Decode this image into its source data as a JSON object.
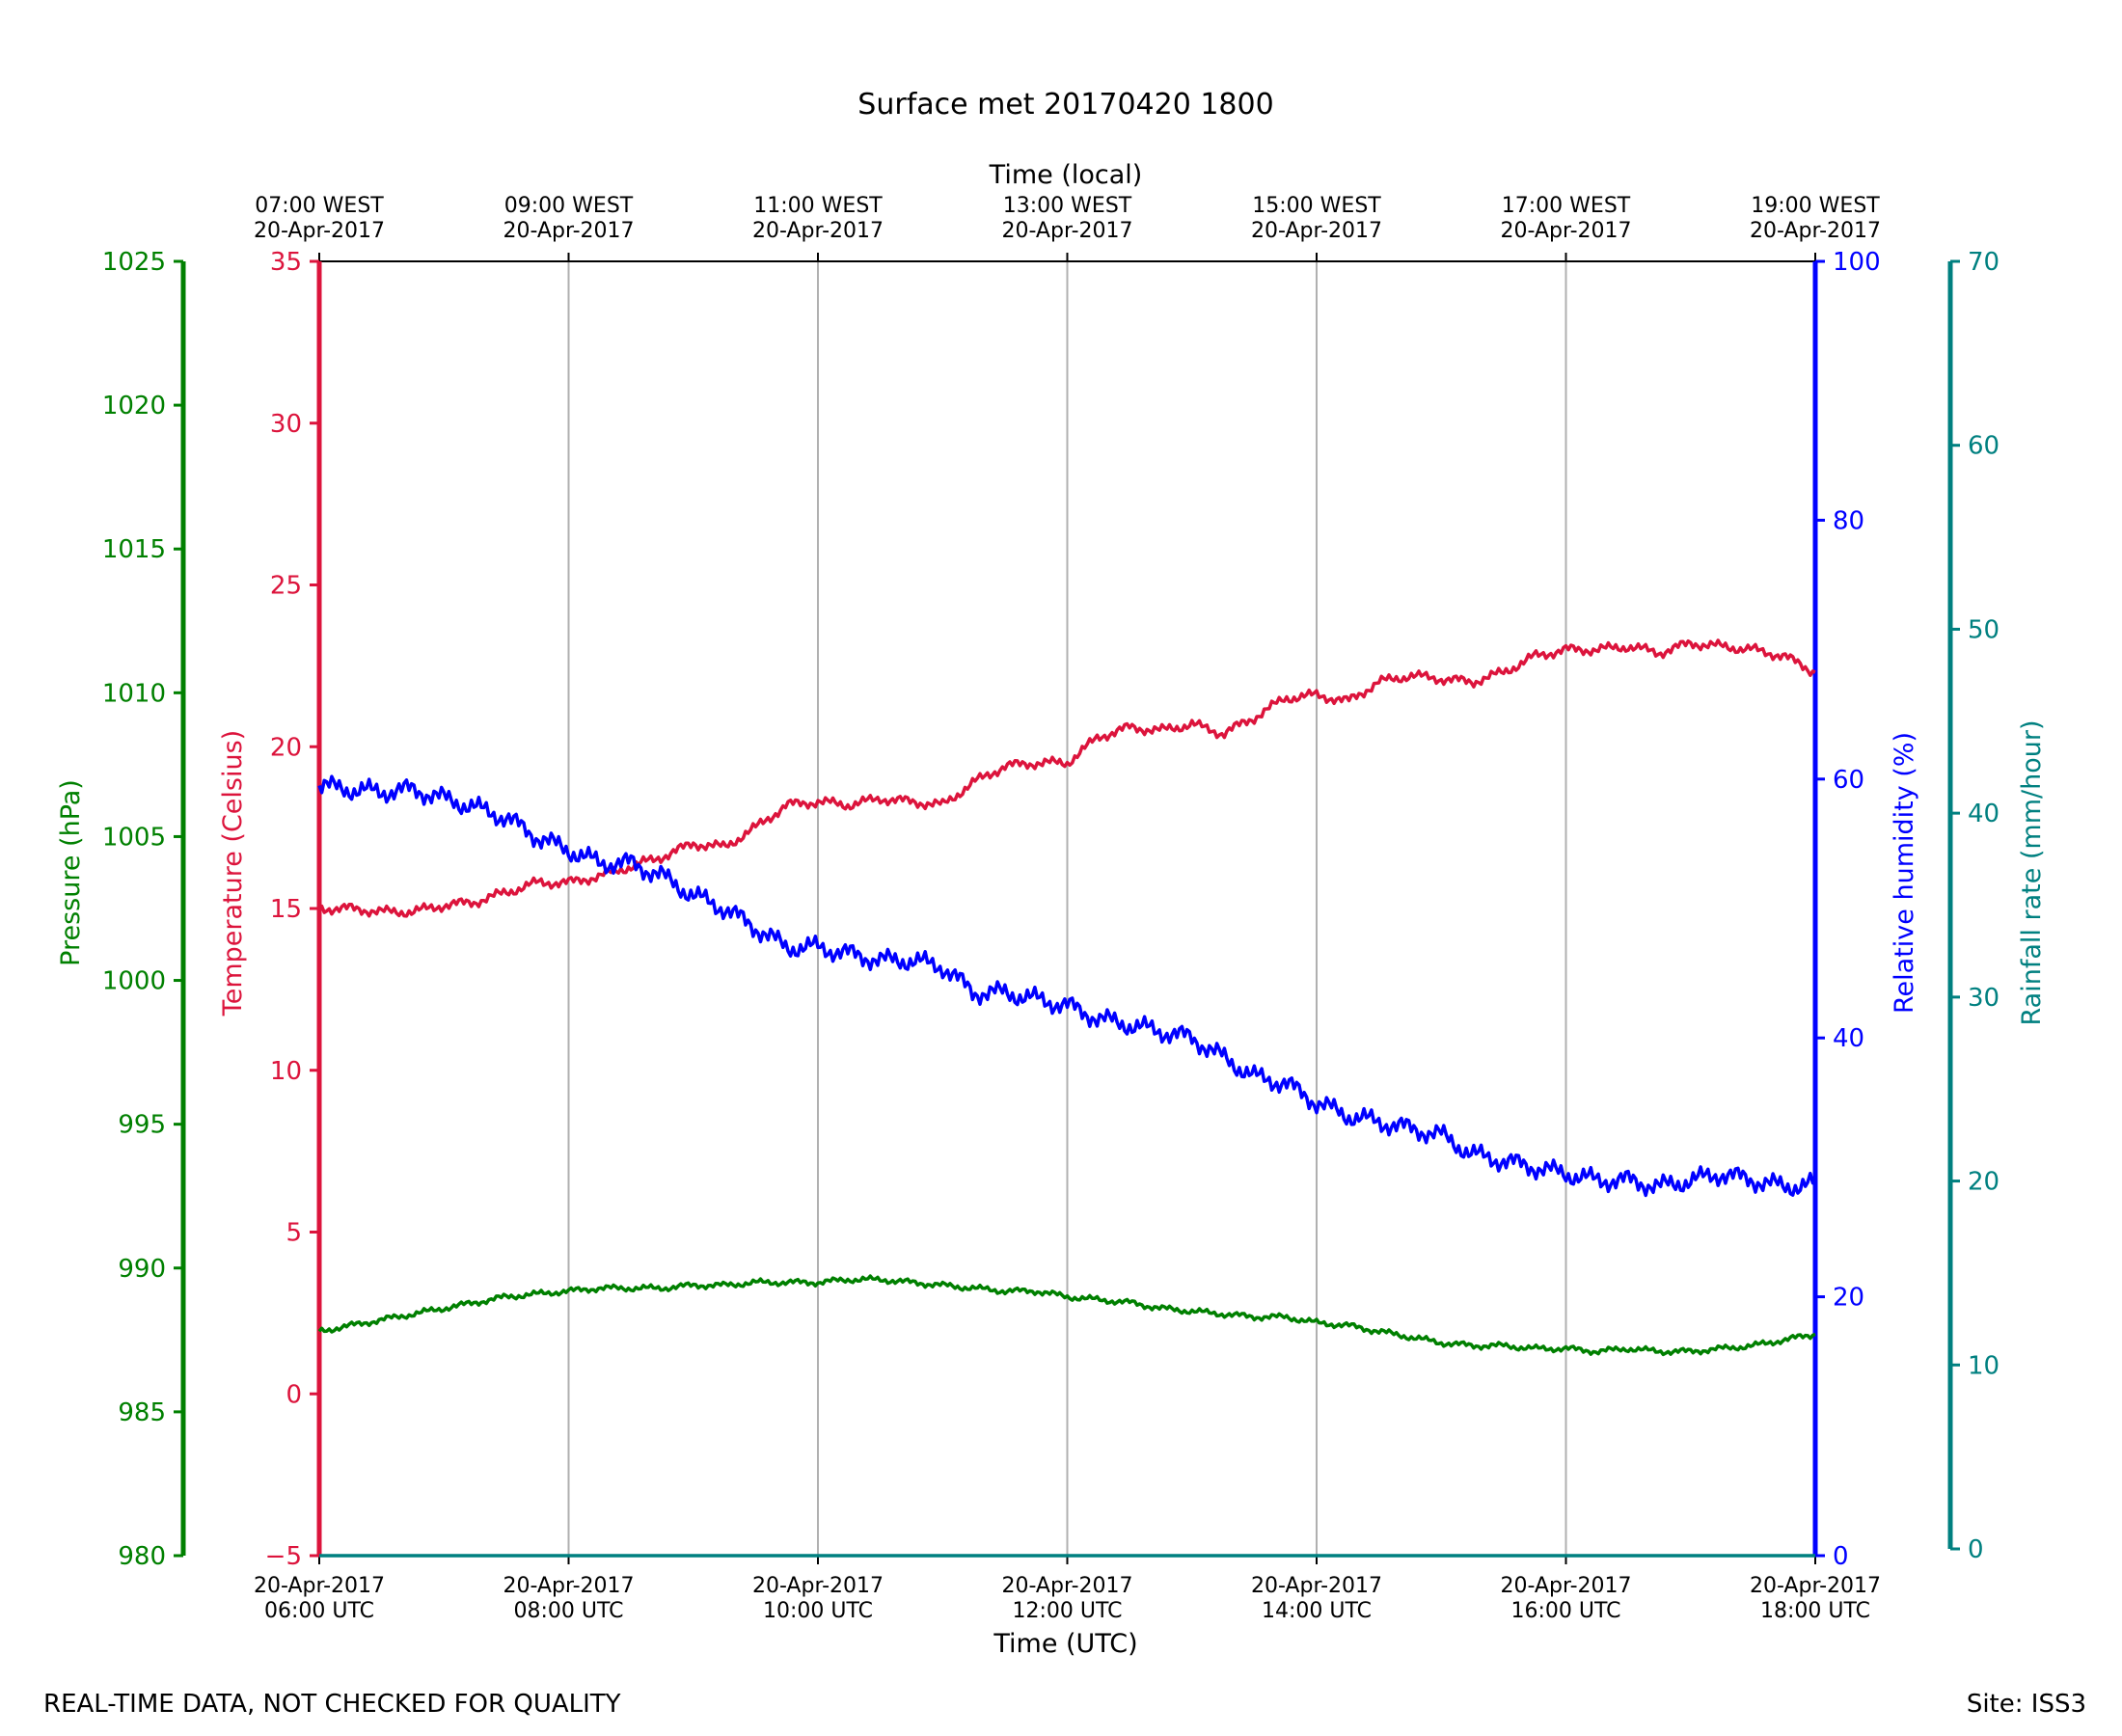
{
  "chart_data": {
    "type": "line",
    "title": "Surface met 20170420 1800",
    "footer_left": "REAL-TIME DATA, NOT CHECKED FOR QUALITY",
    "footer_right": "Site: ISS3",
    "x_bottom": {
      "label": "Time (UTC)",
      "range_hours": [
        6,
        18
      ],
      "ticks": [
        {
          "hour": 6,
          "line1": "20-Apr-2017",
          "line2": "06:00 UTC"
        },
        {
          "hour": 8,
          "line1": "20-Apr-2017",
          "line2": "08:00 UTC"
        },
        {
          "hour": 10,
          "line1": "20-Apr-2017",
          "line2": "10:00 UTC"
        },
        {
          "hour": 12,
          "line1": "20-Apr-2017",
          "line2": "12:00 UTC"
        },
        {
          "hour": 14,
          "line1": "20-Apr-2017",
          "line2": "14:00 UTC"
        },
        {
          "hour": 16,
          "line1": "20-Apr-2017",
          "line2": "16:00 UTC"
        },
        {
          "hour": 18,
          "line1": "20-Apr-2017",
          "line2": "18:00 UTC"
        }
      ]
    },
    "x_top": {
      "label": "Time (local)",
      "ticks": [
        {
          "hour": 6,
          "line1": "07:00 WEST",
          "line2": "20-Apr-2017"
        },
        {
          "hour": 8,
          "line1": "09:00 WEST",
          "line2": "20-Apr-2017"
        },
        {
          "hour": 10,
          "line1": "11:00 WEST",
          "line2": "20-Apr-2017"
        },
        {
          "hour": 12,
          "line1": "13:00 WEST",
          "line2": "20-Apr-2017"
        },
        {
          "hour": 14,
          "line1": "15:00 WEST",
          "line2": "20-Apr-2017"
        },
        {
          "hour": 16,
          "line1": "17:00 WEST",
          "line2": "20-Apr-2017"
        },
        {
          "hour": 18,
          "line1": "19:00 WEST",
          "line2": "20-Apr-2017"
        }
      ]
    },
    "axes": {
      "pressure": {
        "label": "Pressure (hPa)",
        "color": "#008000",
        "ylim": [
          980,
          1025
        ],
        "ticks": [
          980,
          985,
          990,
          995,
          1000,
          1005,
          1010,
          1015,
          1020,
          1025
        ]
      },
      "temperature": {
        "label": "Temperature (Celsius)",
        "color": "#dc143c",
        "ylim": [
          -5,
          35
        ],
        "ticks": [
          -5,
          0,
          5,
          10,
          15,
          20,
          25,
          30,
          35
        ]
      },
      "humidity": {
        "label": "Relative humidity (%)",
        "color": "#0000ff",
        "ylim": [
          0,
          100
        ],
        "ticks": [
          0,
          20,
          40,
          60,
          80,
          100
        ]
      },
      "rainfall": {
        "label": "Rainfall rate (mm/hour)",
        "color": "#008080",
        "ylim": [
          0,
          70
        ],
        "ticks": [
          0,
          10,
          20,
          30,
          40,
          50,
          60,
          70
        ]
      }
    },
    "series": [
      {
        "name": "Temperature",
        "axis": "temperature",
        "color": "#dc143c",
        "x": [
          6.0,
          6.25,
          6.5,
          6.75,
          7.0,
          7.25,
          7.5,
          7.75,
          8.0,
          8.25,
          8.5,
          8.75,
          9.0,
          9.25,
          9.5,
          9.75,
          10.0,
          10.25,
          10.5,
          10.75,
          11.0,
          11.25,
          11.5,
          11.75,
          12.0,
          12.25,
          12.5,
          12.75,
          13.0,
          13.25,
          13.5,
          13.75,
          14.0,
          14.25,
          14.5,
          14.75,
          15.0,
          15.25,
          15.5,
          15.75,
          16.0,
          16.25,
          16.5,
          16.75,
          17.0,
          17.25,
          17.5,
          17.75,
          18.0
        ],
        "values": [
          15.0,
          15.0,
          14.9,
          14.9,
          15.1,
          15.2,
          15.5,
          15.8,
          15.8,
          16.0,
          16.3,
          16.6,
          17.0,
          16.9,
          17.5,
          18.2,
          18.3,
          18.2,
          18.4,
          18.3,
          18.2,
          18.9,
          19.4,
          19.5,
          19.5,
          20.3,
          20.6,
          20.5,
          20.7,
          20.4,
          20.9,
          21.5,
          21.6,
          21.4,
          22.0,
          22.2,
          22.1,
          22.0,
          22.3,
          22.8,
          23.0,
          23.0,
          23.1,
          22.9,
          23.2,
          23.1,
          23.0,
          22.8,
          22.3
        ]
      },
      {
        "name": "Relative humidity",
        "axis": "humidity",
        "color": "#0000ff",
        "x": [
          6.0,
          6.25,
          6.5,
          6.75,
          7.0,
          7.25,
          7.5,
          7.75,
          8.0,
          8.25,
          8.5,
          8.75,
          9.0,
          9.25,
          9.5,
          9.75,
          10.0,
          10.25,
          10.5,
          10.75,
          11.0,
          11.25,
          11.5,
          11.75,
          12.0,
          12.25,
          12.5,
          12.75,
          13.0,
          13.25,
          13.5,
          13.75,
          14.0,
          14.25,
          14.5,
          14.75,
          15.0,
          15.25,
          15.5,
          15.75,
          16.0,
          16.25,
          16.5,
          16.75,
          17.0,
          17.25,
          17.5,
          17.75,
          18.0
        ],
        "values": [
          59.5,
          59.2,
          59.0,
          59.2,
          58.5,
          57.8,
          57.0,
          55.5,
          54.5,
          53.5,
          53.5,
          52.5,
          51.0,
          50.0,
          48.5,
          47.0,
          47.0,
          46.5,
          46.0,
          46.0,
          45.5,
          43.5,
          43.5,
          43.0,
          42.5,
          41.5,
          41.0,
          40.5,
          40.0,
          38.5,
          37.0,
          36.5,
          35.0,
          34.0,
          33.5,
          33.0,
          32.5,
          31.0,
          30.5,
          30.0,
          29.5,
          29.0,
          29.0,
          28.5,
          29.0,
          29.5,
          29.0,
          28.5,
          28.7
        ]
      },
      {
        "name": "Pressure",
        "axis": "pressure",
        "color": "#008000",
        "x": [
          6.0,
          6.25,
          6.5,
          6.75,
          7.0,
          7.25,
          7.5,
          7.75,
          8.0,
          8.25,
          8.5,
          8.75,
          9.0,
          9.25,
          9.5,
          9.75,
          10.0,
          10.25,
          10.5,
          10.75,
          11.0,
          11.25,
          11.5,
          11.75,
          12.0,
          12.25,
          12.5,
          12.75,
          13.0,
          13.25,
          13.5,
          13.75,
          14.0,
          14.25,
          14.5,
          14.75,
          15.0,
          15.25,
          15.5,
          15.75,
          16.0,
          16.25,
          16.5,
          16.75,
          17.0,
          17.25,
          17.5,
          17.75,
          18.0
        ],
        "values": [
          987.8,
          988.0,
          988.2,
          988.4,
          988.6,
          988.8,
          989.0,
          989.1,
          989.2,
          989.3,
          989.3,
          989.3,
          989.4,
          989.4,
          989.5,
          989.5,
          989.5,
          989.6,
          989.6,
          989.5,
          989.4,
          989.3,
          989.2,
          989.2,
          989.0,
          988.9,
          988.8,
          988.6,
          988.5,
          988.4,
          988.3,
          988.3,
          988.1,
          988.0,
          987.8,
          987.6,
          987.4,
          987.3,
          987.3,
          987.2,
          987.2,
          987.1,
          987.2,
          987.1,
          987.1,
          987.2,
          987.3,
          987.5,
          987.7
        ]
      },
      {
        "name": "Rainfall rate",
        "axis": "rainfall",
        "color": "#008080",
        "x": [
          6.0,
          18.0
        ],
        "values": [
          0.0,
          0.0
        ]
      }
    ]
  }
}
